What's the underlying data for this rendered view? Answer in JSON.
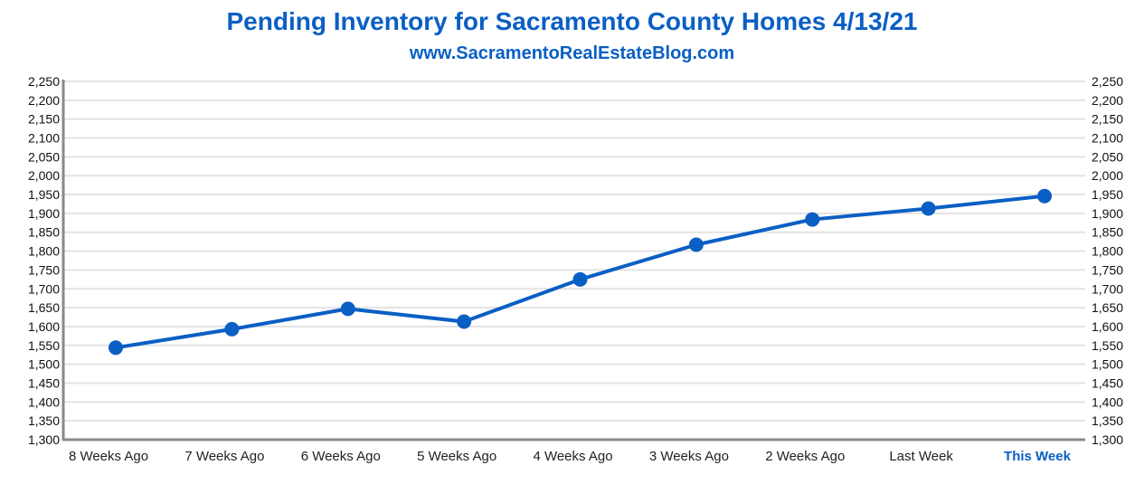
{
  "chart_data": {
    "type": "line",
    "title": "Pending Inventory for Sacramento County Homes 4/13/21",
    "subtitle": "www.SacramentoRealEstateBlog.com",
    "xlabel": "",
    "ylabel": "",
    "categories": [
      "8 Weeks Ago",
      "7 Weeks Ago",
      "6 Weeks Ago",
      "5 Weeks Ago",
      "4 Weeks Ago",
      "3 Weeks Ago",
      "2 Weeks Ago",
      "Last Week",
      "This Week"
    ],
    "highlight_category": "This Week",
    "series": [
      {
        "name": "Pending Inventory",
        "values": [
          1544,
          1593,
          1647,
          1613,
          1725,
          1817,
          1884,
          1913,
          1946
        ],
        "color": "#0a5fc4"
      }
    ],
    "ylim": [
      1300,
      2250
    ],
    "ytick_step": 50,
    "yticks": [
      "1,300",
      "1,350",
      "1,400",
      "1,450",
      "1,500",
      "1,550",
      "1,600",
      "1,650",
      "1,700",
      "1,750",
      "1,800",
      "1,850",
      "1,900",
      "1,950",
      "2,000",
      "2,050",
      "2,100",
      "2,150",
      "2,200",
      "2,250"
    ],
    "grid": true,
    "secondary_axis": "right"
  }
}
